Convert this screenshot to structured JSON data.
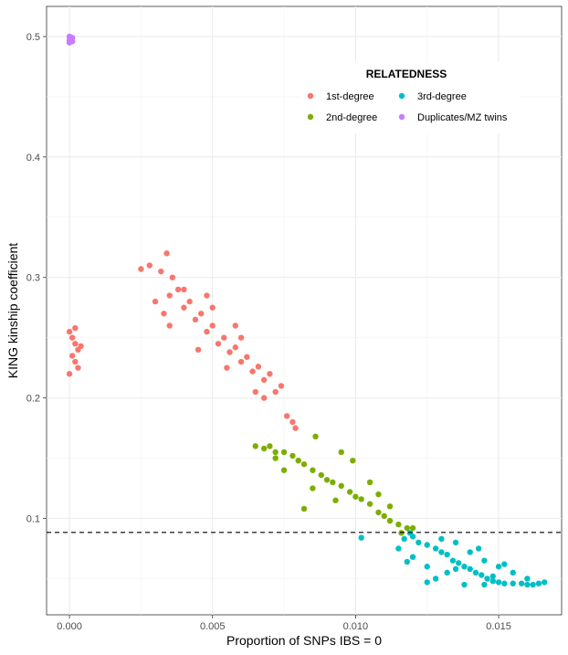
{
  "chart_data": {
    "type": "scatter",
    "title": "",
    "xlabel": "Proportion of SNPs IBS = 0",
    "ylabel": "KING kinship coefficient",
    "xlim": [
      -0.0008,
      0.0172
    ],
    "ylim": [
      0.02,
      0.525
    ],
    "x_ticks": [
      0.0,
      0.005,
      0.01,
      0.015
    ],
    "x_tick_labels": [
      "0.000",
      "0.005",
      "0.010",
      "0.015"
    ],
    "y_ticks": [
      0.1,
      0.2,
      0.3,
      0.4,
      0.5
    ],
    "y_tick_labels": [
      "0.1",
      "0.2",
      "0.3",
      "0.4",
      "0.5"
    ],
    "grid": true,
    "threshold_line": {
      "y": 0.0884,
      "style": "dashed",
      "color": "#000000"
    },
    "legend": {
      "title": "RELATEDNESS",
      "position": "top-right"
    },
    "series": [
      {
        "name": "1st-degree",
        "color": "#F8766D",
        "points": [
          [
            0.0,
            0.255
          ],
          [
            0.0001,
            0.25
          ],
          [
            0.0002,
            0.245
          ],
          [
            0.0003,
            0.24
          ],
          [
            0.0001,
            0.235
          ],
          [
            0.0002,
            0.258
          ],
          [
            0.0004,
            0.243
          ],
          [
            0.0,
            0.22
          ],
          [
            0.0003,
            0.225
          ],
          [
            0.0002,
            0.23
          ],
          [
            0.0025,
            0.307
          ],
          [
            0.0028,
            0.31
          ],
          [
            0.0032,
            0.305
          ],
          [
            0.0034,
            0.32
          ],
          [
            0.0036,
            0.3
          ],
          [
            0.0035,
            0.285
          ],
          [
            0.0038,
            0.29
          ],
          [
            0.004,
            0.275
          ],
          [
            0.0042,
            0.28
          ],
          [
            0.0044,
            0.265
          ],
          [
            0.0046,
            0.27
          ],
          [
            0.0048,
            0.255
          ],
          [
            0.005,
            0.26
          ],
          [
            0.0052,
            0.245
          ],
          [
            0.0054,
            0.25
          ],
          [
            0.0056,
            0.238
          ],
          [
            0.0058,
            0.242
          ],
          [
            0.006,
            0.23
          ],
          [
            0.0062,
            0.234
          ],
          [
            0.0064,
            0.222
          ],
          [
            0.0066,
            0.226
          ],
          [
            0.0068,
            0.215
          ],
          [
            0.007,
            0.22
          ],
          [
            0.0072,
            0.205
          ],
          [
            0.0074,
            0.21
          ],
          [
            0.0076,
            0.185
          ],
          [
            0.0078,
            0.18
          ],
          [
            0.0079,
            0.175
          ],
          [
            0.0035,
            0.26
          ],
          [
            0.004,
            0.29
          ],
          [
            0.0045,
            0.24
          ],
          [
            0.005,
            0.275
          ],
          [
            0.0055,
            0.225
          ],
          [
            0.006,
            0.25
          ],
          [
            0.0065,
            0.205
          ],
          [
            0.003,
            0.28
          ],
          [
            0.0033,
            0.27
          ],
          [
            0.0048,
            0.285
          ],
          [
            0.0058,
            0.26
          ],
          [
            0.0068,
            0.2
          ]
        ]
      },
      {
        "name": "2nd-degree",
        "color": "#7CAE00",
        "points": [
          [
            0.0065,
            0.16
          ],
          [
            0.0068,
            0.158
          ],
          [
            0.007,
            0.16
          ],
          [
            0.0072,
            0.155
          ],
          [
            0.0075,
            0.155
          ],
          [
            0.0078,
            0.152
          ],
          [
            0.008,
            0.148
          ],
          [
            0.0082,
            0.145
          ],
          [
            0.0085,
            0.14
          ],
          [
            0.0088,
            0.136
          ],
          [
            0.009,
            0.132
          ],
          [
            0.0092,
            0.13
          ],
          [
            0.0095,
            0.127
          ],
          [
            0.0098,
            0.122
          ],
          [
            0.01,
            0.118
          ],
          [
            0.0102,
            0.116
          ],
          [
            0.0105,
            0.112
          ],
          [
            0.0108,
            0.105
          ],
          [
            0.011,
            0.102
          ],
          [
            0.0112,
            0.098
          ],
          [
            0.0115,
            0.095
          ],
          [
            0.0118,
            0.092
          ],
          [
            0.012,
            0.092
          ],
          [
            0.0086,
            0.168
          ],
          [
            0.0095,
            0.155
          ],
          [
            0.0099,
            0.148
          ],
          [
            0.0082,
            0.108
          ],
          [
            0.0085,
            0.125
          ],
          [
            0.0072,
            0.15
          ],
          [
            0.0105,
            0.13
          ],
          [
            0.0108,
            0.12
          ],
          [
            0.0112,
            0.11
          ],
          [
            0.0093,
            0.115
          ],
          [
            0.0075,
            0.14
          ],
          [
            0.0116,
            0.088
          ]
        ]
      },
      {
        "name": "3rd-degree",
        "color": "#00BFC4",
        "points": [
          [
            0.0119,
            0.088
          ],
          [
            0.012,
            0.085
          ],
          [
            0.0122,
            0.08
          ],
          [
            0.0125,
            0.078
          ],
          [
            0.0128,
            0.075
          ],
          [
            0.013,
            0.072
          ],
          [
            0.0132,
            0.07
          ],
          [
            0.0134,
            0.065
          ],
          [
            0.0136,
            0.063
          ],
          [
            0.0138,
            0.06
          ],
          [
            0.014,
            0.058
          ],
          [
            0.0142,
            0.055
          ],
          [
            0.0144,
            0.053
          ],
          [
            0.0146,
            0.05
          ],
          [
            0.0148,
            0.048
          ],
          [
            0.015,
            0.047
          ],
          [
            0.0152,
            0.046
          ],
          [
            0.0155,
            0.046
          ],
          [
            0.0158,
            0.046
          ],
          [
            0.016,
            0.045
          ],
          [
            0.0162,
            0.045
          ],
          [
            0.0164,
            0.046
          ],
          [
            0.0166,
            0.047
          ],
          [
            0.0125,
            0.06
          ],
          [
            0.012,
            0.068
          ],
          [
            0.0115,
            0.075
          ],
          [
            0.0135,
            0.08
          ],
          [
            0.014,
            0.072
          ],
          [
            0.0145,
            0.065
          ],
          [
            0.015,
            0.06
          ],
          [
            0.0155,
            0.055
          ],
          [
            0.0132,
            0.055
          ],
          [
            0.0128,
            0.05
          ],
          [
            0.0138,
            0.045
          ],
          [
            0.0145,
            0.045
          ],
          [
            0.0102,
            0.084
          ],
          [
            0.0117,
            0.083
          ],
          [
            0.0118,
            0.064
          ],
          [
            0.0125,
            0.047
          ],
          [
            0.013,
            0.083
          ],
          [
            0.0143,
            0.075
          ],
          [
            0.0152,
            0.062
          ],
          [
            0.016,
            0.05
          ],
          [
            0.0148,
            0.052
          ],
          [
            0.0135,
            0.058
          ]
        ]
      },
      {
        "name": "Duplicates/MZ twins",
        "color": "#C77CFF",
        "points": [
          [
            0.0,
            0.5
          ],
          [
            0.0,
            0.497
          ],
          [
            0.0001,
            0.499
          ],
          [
            0.0,
            0.495
          ],
          [
            0.0001,
            0.496
          ]
        ]
      }
    ]
  }
}
